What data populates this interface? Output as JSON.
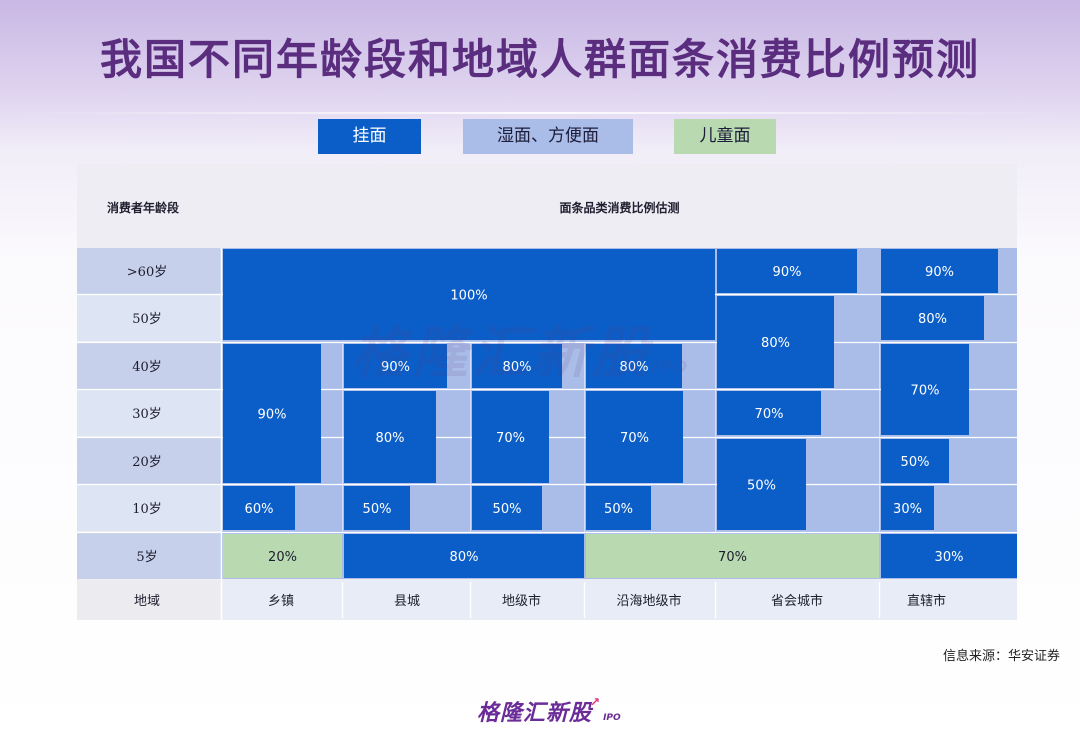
{
  "page": {
    "title": "我国不同年龄段和地域人群面条消费比例预测",
    "source": "信息来源：华安证券",
    "logo_text": "格隆汇新股",
    "logo_sub": "IPO",
    "watermark_text": "格隆汇新股",
    "watermark_sub": "IPO"
  },
  "colors": {
    "guamian": "#0b5ec7",
    "shimian_fangbianmian": "#a9bde8",
    "ertongmian": "#b9dab0",
    "row_label_dark": "#c6d0ea",
    "row_label_light": "#dde4f4",
    "region_row": "#e8ecf6",
    "title": "#5a2d7f"
  },
  "chart_data": {
    "type": "table",
    "title": "我国不同年龄段和地域人群面条消费比例预测",
    "legend": [
      "挂面",
      "湿面、方便面",
      "儿童面"
    ],
    "header": {
      "age_col": "消费者年龄段",
      "main": "面条品类消费比例估测"
    },
    "age_groups": [
      ">60岁",
      "50岁",
      "40岁",
      "30岁",
      "20岁",
      "10岁",
      "5岁"
    ],
    "region_row_label": "地域",
    "regions": [
      "乡镇",
      "县城",
      "地级市",
      "沿海地级市",
      "省会城市",
      "直辖市"
    ],
    "blocks": [
      {
        "product": "挂面",
        "regions": [
          "乡镇",
          "县城",
          "地级市",
          "沿海地级市"
        ],
        "ages": [
          ">60岁",
          "50岁"
        ],
        "value": "100%"
      },
      {
        "product": "挂面",
        "regions": [
          "省会城市"
        ],
        "ages": [
          ">60岁"
        ],
        "value": "90%"
      },
      {
        "product": "挂面",
        "regions": [
          "省会城市"
        ],
        "ages": [
          "50岁",
          "40岁"
        ],
        "value": "80%"
      },
      {
        "product": "挂面",
        "regions": [
          "省会城市"
        ],
        "ages": [
          "30岁"
        ],
        "value": "70%"
      },
      {
        "product": "挂面",
        "regions": [
          "省会城市"
        ],
        "ages": [
          "20岁",
          "10岁"
        ],
        "value": "50%"
      },
      {
        "product": "挂面",
        "regions": [
          "直辖市"
        ],
        "ages": [
          ">60岁"
        ],
        "value": "90%"
      },
      {
        "product": "挂面",
        "regions": [
          "直辖市"
        ],
        "ages": [
          "50岁"
        ],
        "value": "80%"
      },
      {
        "product": "挂面",
        "regions": [
          "直辖市"
        ],
        "ages": [
          "40岁",
          "30岁"
        ],
        "value": "70%"
      },
      {
        "product": "挂面",
        "regions": [
          "直辖市"
        ],
        "ages": [
          "20岁"
        ],
        "value": "50%"
      },
      {
        "product": "挂面",
        "regions": [
          "直辖市"
        ],
        "ages": [
          "10岁"
        ],
        "value": "30%"
      },
      {
        "product": "挂面",
        "regions": [
          "乡镇"
        ],
        "ages": [
          "40岁",
          "30岁",
          "20岁"
        ],
        "value": "90%"
      },
      {
        "product": "挂面",
        "regions": [
          "乡镇"
        ],
        "ages": [
          "10岁"
        ],
        "value": "60%"
      },
      {
        "product": "挂面",
        "regions": [
          "县城"
        ],
        "ages": [
          "40岁"
        ],
        "value": "90%"
      },
      {
        "product": "挂面",
        "regions": [
          "县城"
        ],
        "ages": [
          "30岁",
          "20岁"
        ],
        "value": "80%"
      },
      {
        "product": "挂面",
        "regions": [
          "县城"
        ],
        "ages": [
          "10岁"
        ],
        "value": "50%"
      },
      {
        "product": "挂面",
        "regions": [
          "地级市"
        ],
        "ages": [
          "40岁"
        ],
        "value": "80%"
      },
      {
        "product": "挂面",
        "regions": [
          "地级市"
        ],
        "ages": [
          "30岁",
          "20岁"
        ],
        "value": "70%"
      },
      {
        "product": "挂面",
        "regions": [
          "地级市"
        ],
        "ages": [
          "10岁"
        ],
        "value": "50%"
      },
      {
        "product": "挂面",
        "regions": [
          "沿海地级市"
        ],
        "ages": [
          "40岁"
        ],
        "value": "80%"
      },
      {
        "product": "挂面",
        "regions": [
          "沿海地级市"
        ],
        "ages": [
          "30岁",
          "20岁"
        ],
        "value": "70%"
      },
      {
        "product": "挂面",
        "regions": [
          "沿海地级市"
        ],
        "ages": [
          "10岁"
        ],
        "value": "50%"
      },
      {
        "product": "儿童面",
        "regions": [
          "乡镇"
        ],
        "ages": [
          "5岁"
        ],
        "value": "20%"
      },
      {
        "product": "挂面",
        "regions": [
          "县城",
          "地级市"
        ],
        "ages": [
          "5岁"
        ],
        "value": "80%"
      },
      {
        "product": "儿童面",
        "regions": [
          "沿海地级市",
          "省会城市"
        ],
        "ages": [
          "5岁"
        ],
        "value": "70%"
      },
      {
        "product": "挂面",
        "regions": [
          "直辖市"
        ],
        "ages": [
          "5岁"
        ],
        "value": "30%"
      }
    ]
  }
}
